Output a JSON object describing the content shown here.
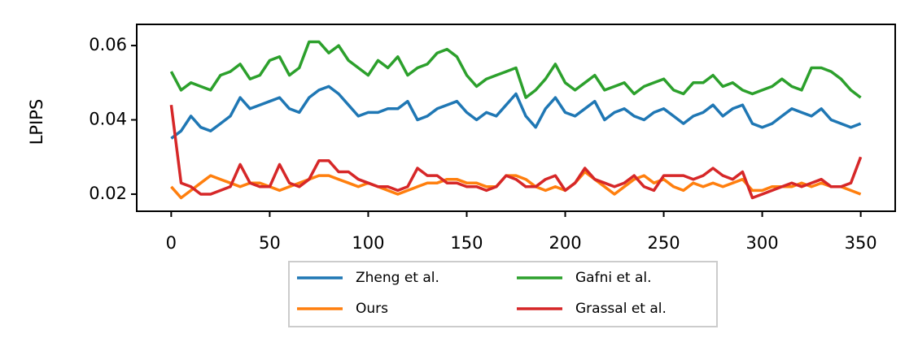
{
  "chart_data": {
    "type": "line",
    "y_label": "LPIPS",
    "x": [
      0,
      5,
      10,
      15,
      20,
      25,
      30,
      35,
      40,
      45,
      50,
      55,
      60,
      65,
      70,
      75,
      80,
      85,
      90,
      95,
      100,
      105,
      110,
      115,
      120,
      125,
      130,
      135,
      140,
      145,
      150,
      155,
      160,
      165,
      170,
      175,
      180,
      185,
      190,
      195,
      200,
      205,
      210,
      215,
      220,
      225,
      230,
      235,
      240,
      245,
      250,
      255,
      260,
      265,
      270,
      275,
      280,
      285,
      290,
      295,
      300,
      305,
      310,
      315,
      320,
      325,
      330,
      335,
      340,
      345,
      350
    ],
    "series": [
      {
        "name": "Zheng et al.",
        "color": "#1f77b4",
        "values": [
          0.035,
          0.037,
          0.041,
          0.038,
          0.037,
          0.039,
          0.041,
          0.046,
          0.043,
          0.044,
          0.045,
          0.046,
          0.043,
          0.042,
          0.046,
          0.048,
          0.049,
          0.047,
          0.044,
          0.041,
          0.042,
          0.042,
          0.043,
          0.043,
          0.045,
          0.04,
          0.041,
          0.043,
          0.044,
          0.045,
          0.042,
          0.04,
          0.042,
          0.041,
          0.044,
          0.047,
          0.041,
          0.038,
          0.043,
          0.046,
          0.042,
          0.041,
          0.043,
          0.045,
          0.04,
          0.042,
          0.043,
          0.041,
          0.04,
          0.042,
          0.043,
          0.041,
          0.039,
          0.041,
          0.042,
          0.044,
          0.041,
          0.043,
          0.044,
          0.039,
          0.038,
          0.039,
          0.041,
          0.043,
          0.042,
          0.041,
          0.043,
          0.04,
          0.039,
          0.038,
          0.039
        ]
      },
      {
        "name": "Ours",
        "color": "#ff7f0e",
        "values": [
          0.022,
          0.019,
          0.021,
          0.023,
          0.025,
          0.024,
          0.023,
          0.022,
          0.023,
          0.023,
          0.022,
          0.021,
          0.022,
          0.023,
          0.024,
          0.025,
          0.025,
          0.024,
          0.023,
          0.022,
          0.023,
          0.022,
          0.021,
          0.02,
          0.021,
          0.022,
          0.023,
          0.023,
          0.024,
          0.024,
          0.023,
          0.023,
          0.022,
          0.022,
          0.025,
          0.025,
          0.024,
          0.022,
          0.021,
          0.022,
          0.021,
          0.023,
          0.026,
          0.024,
          0.022,
          0.02,
          0.022,
          0.024,
          0.025,
          0.023,
          0.024,
          0.022,
          0.021,
          0.023,
          0.022,
          0.023,
          0.022,
          0.023,
          0.024,
          0.021,
          0.021,
          0.022,
          0.022,
          0.022,
          0.023,
          0.022,
          0.023,
          0.022,
          0.022,
          0.021,
          0.02
        ]
      },
      {
        "name": "Gafni et al.",
        "color": "#2ca02c",
        "values": [
          0.053,
          0.048,
          0.05,
          0.049,
          0.048,
          0.052,
          0.053,
          0.055,
          0.051,
          0.052,
          0.056,
          0.057,
          0.052,
          0.054,
          0.061,
          0.061,
          0.058,
          0.06,
          0.056,
          0.054,
          0.052,
          0.056,
          0.054,
          0.057,
          0.052,
          0.054,
          0.055,
          0.058,
          0.059,
          0.057,
          0.052,
          0.049,
          0.051,
          0.052,
          0.053,
          0.054,
          0.046,
          0.048,
          0.051,
          0.055,
          0.05,
          0.048,
          0.05,
          0.052,
          0.048,
          0.049,
          0.05,
          0.047,
          0.049,
          0.05,
          0.051,
          0.048,
          0.047,
          0.05,
          0.05,
          0.052,
          0.049,
          0.05,
          0.048,
          0.047,
          0.048,
          0.049,
          0.051,
          0.049,
          0.048,
          0.054,
          0.054,
          0.053,
          0.051,
          0.048,
          0.046
        ]
      },
      {
        "name": "Grassal et al.",
        "color": "#d62728",
        "values": [
          0.044,
          0.023,
          0.022,
          0.02,
          0.02,
          0.021,
          0.022,
          0.028,
          0.023,
          0.022,
          0.022,
          0.028,
          0.023,
          0.022,
          0.024,
          0.029,
          0.029,
          0.026,
          0.026,
          0.024,
          0.023,
          0.022,
          0.022,
          0.021,
          0.022,
          0.027,
          0.025,
          0.025,
          0.023,
          0.023,
          0.022,
          0.022,
          0.021,
          0.022,
          0.025,
          0.024,
          0.022,
          0.022,
          0.024,
          0.025,
          0.021,
          0.023,
          0.027,
          0.024,
          0.023,
          0.022,
          0.023,
          0.025,
          0.022,
          0.021,
          0.025,
          0.025,
          0.025,
          0.024,
          0.025,
          0.027,
          0.025,
          0.024,
          0.026,
          0.019,
          0.02,
          0.021,
          0.022,
          0.023,
          0.022,
          0.023,
          0.024,
          0.022,
          0.022,
          0.023,
          0.03
        ]
      }
    ],
    "xlim": [
      -17.5,
      367.5
    ],
    "ylim": [
      0.0154,
      0.0657
    ],
    "xticks": [
      0,
      50,
      100,
      150,
      200,
      250,
      300,
      350
    ],
    "yticks": [
      0.02,
      0.04,
      0.06
    ],
    "grid": false,
    "legend": "below"
  }
}
